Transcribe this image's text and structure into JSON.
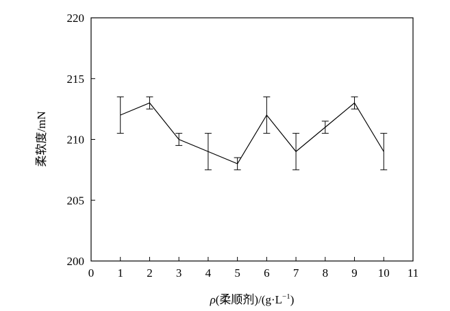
{
  "chart_data": {
    "type": "line",
    "title": "",
    "xlabel_parts": {
      "symbol": "ρ",
      "middle": "(柔顺剂)/(g·L",
      "exponent": "−1",
      "end": ")"
    },
    "ylabel": "柔软度/mN",
    "xlim": [
      0,
      11
    ],
    "ylim": [
      200,
      220
    ],
    "xticks": [
      0,
      1,
      2,
      3,
      4,
      5,
      6,
      7,
      8,
      9,
      10,
      11
    ],
    "yticks": [
      200,
      205,
      210,
      215,
      220
    ],
    "grid": false,
    "legend": "none",
    "series": [
      {
        "x": [
          1,
          2,
          3,
          4,
          5,
          6,
          7,
          8,
          9,
          10
        ],
        "y": [
          212,
          213,
          210,
          209,
          208,
          212,
          209,
          211,
          213,
          209
        ],
        "error": [
          1.5,
          0.5,
          0.5,
          1.5,
          0.5,
          1.5,
          1.5,
          0.5,
          0.5,
          1.5
        ]
      }
    ],
    "colors": {
      "line": "#000000",
      "axis": "#000000",
      "background": "#ffffff"
    }
  }
}
